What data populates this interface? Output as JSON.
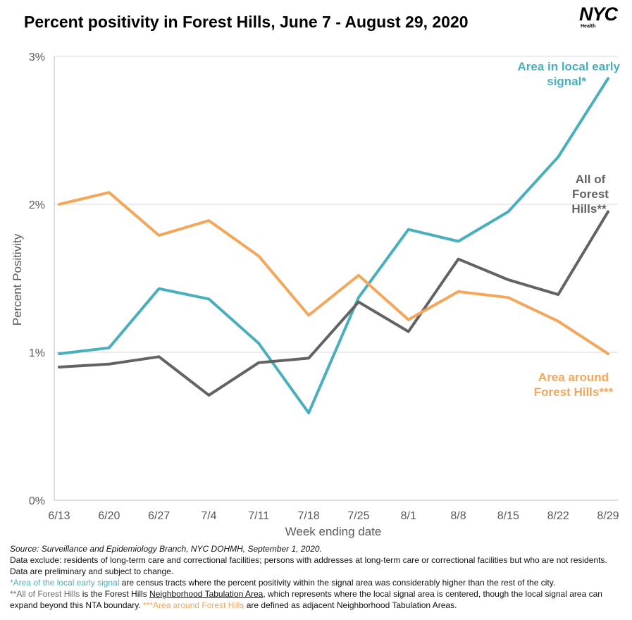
{
  "title": "Percent positivity in Forest Hills, June 7 - August 29, 2020",
  "logo": {
    "mark": "NYC",
    "sub": "Health"
  },
  "colors": {
    "teal": "#4aafbd",
    "gray": "#636363",
    "orange": "#f4a65a",
    "axis": "#bfbfbf",
    "grid": "#d9d9d9"
  },
  "chart_data": {
    "type": "line",
    "title": "Percent positivity in Forest Hills, June 7 - August 29, 2020",
    "xlabel": "Week ending date",
    "ylabel": "Percent Positivity",
    "categories": [
      "6/13",
      "6/20",
      "6/27",
      "7/4",
      "7/11",
      "7/18",
      "7/25",
      "8/1",
      "8/8",
      "8/15",
      "8/22",
      "8/29"
    ],
    "yticks": [
      "0%",
      "1%",
      "2%",
      "3%"
    ],
    "ylim": [
      0,
      3
    ],
    "grid": true,
    "series": [
      {
        "name": "Area in local early signal*",
        "color": "#4aafbd",
        "values": [
          0.99,
          1.03,
          1.43,
          1.36,
          1.06,
          0.59,
          1.37,
          1.83,
          1.75,
          1.95,
          2.32,
          2.85
        ]
      },
      {
        "name": "All of Forest Hills**",
        "color": "#636363",
        "values": [
          0.9,
          0.92,
          0.97,
          0.71,
          0.93,
          0.96,
          1.34,
          1.14,
          1.63,
          1.49,
          1.39,
          1.95
        ]
      },
      {
        "name": "Area around Forest Hills***",
        "color": "#f4a65a",
        "values": [
          2.0,
          2.08,
          1.79,
          1.89,
          1.65,
          1.25,
          1.52,
          1.22,
          1.41,
          1.37,
          1.21,
          0.99
        ]
      }
    ],
    "labels": {
      "teal_line1": "Area in local early",
      "teal_line2": "signal*",
      "gray_line1": "All of",
      "gray_line2": "Forest",
      "gray_line3": "Hills**",
      "orange_line1": "Area around",
      "orange_line2": "Forest Hills***"
    }
  },
  "footnotes": {
    "source": "Source: Surveillance and Epidemiology Branch, NYC DOHMH, September 1, 2020.",
    "exclude": "Data exclude: residents of long-term care and correctional facilities; persons with addresses at long-term care or correctional facilities but who are not residents. Data are preliminary and subject to change.",
    "teal_term": "*Area of the local early signal",
    "teal_rest": " are census tracts where the percent positivity within the signal area was considerably higher than the rest of the city.",
    "gray_term": "**All of Forest Hills",
    "gray_mid": " is the Forest Hills ",
    "nta_link": "Neighborhood Tabulation Area",
    "gray_rest": ", which represents where the local signal area is centered, though the local signal area can expand beyond this NTA boundary. ",
    "orange_term": "***Area around Forest Hills",
    "orange_rest": " are defined as adjacent Neighborhood Tabulation Areas."
  }
}
